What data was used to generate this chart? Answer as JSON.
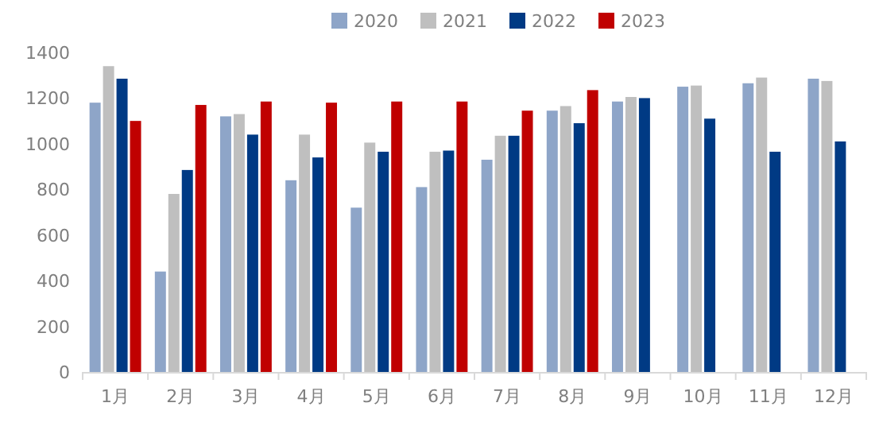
{
  "chart_data": {
    "type": "bar",
    "categories": [
      "1月",
      "2月",
      "3月",
      "4月",
      "5月",
      "6月",
      "7月",
      "8月",
      "9月",
      "10月",
      "11月",
      "12月"
    ],
    "series": [
      {
        "name": "2020",
        "color": "#8ea5c8",
        "values": [
          1180,
          440,
          1120,
          840,
          720,
          810,
          930,
          1145,
          1185,
          1250,
          1265,
          1285
        ]
      },
      {
        "name": "2021",
        "color": "#bfbfbf",
        "values": [
          1340,
          780,
          1130,
          1040,
          1005,
          965,
          1035,
          1165,
          1205,
          1255,
          1290,
          1275
        ]
      },
      {
        "name": "2022",
        "color": "#003a84",
        "values": [
          1285,
          885,
          1040,
          940,
          965,
          970,
          1035,
          1090,
          1200,
          1110,
          965,
          1010
        ]
      },
      {
        "name": "2023",
        "color": "#c00000",
        "values": [
          1100,
          1170,
          1185,
          1180,
          1185,
          1185,
          1145,
          1235,
          null,
          null,
          null,
          null
        ]
      }
    ],
    "ylim": [
      0,
      1400
    ],
    "yticks": [
      0,
      200,
      400,
      600,
      800,
      1000,
      1200,
      1400
    ],
    "legend": "top",
    "grid": false
  }
}
